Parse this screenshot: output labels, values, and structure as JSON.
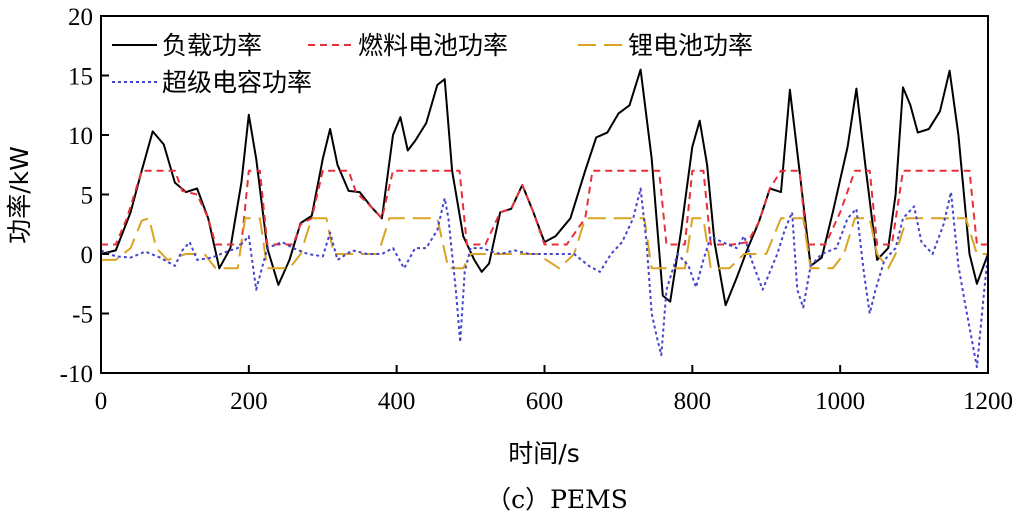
{
  "chart_data": {
    "type": "line",
    "xlabel": "时间/s",
    "ylabel": "功率/kW",
    "caption": "（c）PEMS",
    "xlim": [
      0,
      1200
    ],
    "ylim": [
      -10,
      20
    ],
    "xticks": [
      0,
      200,
      400,
      600,
      800,
      1000,
      1200
    ],
    "yticks": [
      -10,
      -5,
      0,
      5,
      10,
      15,
      20
    ],
    "grid": false,
    "legend_position": "top-left",
    "series": [
      {
        "name": "负载功率",
        "color": "#000000",
        "dash": "solid",
        "points": [
          [
            0,
            0
          ],
          [
            20,
            0.3
          ],
          [
            40,
            3.5
          ],
          [
            55,
            7
          ],
          [
            70,
            10.3
          ],
          [
            85,
            9.2
          ],
          [
            100,
            6
          ],
          [
            115,
            5.2
          ],
          [
            130,
            5.5
          ],
          [
            145,
            3
          ],
          [
            160,
            -1.2
          ],
          [
            175,
            0.5
          ],
          [
            190,
            6
          ],
          [
            200,
            11.7
          ],
          [
            210,
            8
          ],
          [
            225,
            0.5
          ],
          [
            240,
            -2.6
          ],
          [
            255,
            -0.5
          ],
          [
            270,
            2.6
          ],
          [
            285,
            3.2
          ],
          [
            300,
            8
          ],
          [
            310,
            10.5
          ],
          [
            320,
            7.5
          ],
          [
            335,
            5.3
          ],
          [
            350,
            5.2
          ],
          [
            365,
            4
          ],
          [
            380,
            3
          ],
          [
            395,
            10
          ],
          [
            405,
            11.5
          ],
          [
            415,
            8.7
          ],
          [
            425,
            9.5
          ],
          [
            440,
            11
          ],
          [
            455,
            14.2
          ],
          [
            465,
            14.7
          ],
          [
            475,
            7
          ],
          [
            490,
            1.5
          ],
          [
            505,
            -0.5
          ],
          [
            515,
            -1.5
          ],
          [
            525,
            -0.8
          ],
          [
            540,
            3.5
          ],
          [
            555,
            3.8
          ],
          [
            570,
            5.8
          ],
          [
            585,
            3.5
          ],
          [
            600,
            1
          ],
          [
            615,
            1.5
          ],
          [
            635,
            3
          ],
          [
            655,
            7
          ],
          [
            670,
            9.8
          ],
          [
            685,
            10.2
          ],
          [
            700,
            11.8
          ],
          [
            715,
            12.5
          ],
          [
            730,
            15.5
          ],
          [
            745,
            8
          ],
          [
            760,
            -3.5
          ],
          [
            770,
            -4
          ],
          [
            785,
            2
          ],
          [
            800,
            9
          ],
          [
            810,
            11.2
          ],
          [
            820,
            7.5
          ],
          [
            830,
            1
          ],
          [
            845,
            -4.3
          ],
          [
            860,
            -2
          ],
          [
            875,
            0.5
          ],
          [
            890,
            2.7
          ],
          [
            905,
            5.5
          ],
          [
            920,
            5.2
          ],
          [
            932,
            13.8
          ],
          [
            945,
            7
          ],
          [
            960,
            -1
          ],
          [
            975,
            -0.3
          ],
          [
            990,
            3.5
          ],
          [
            1010,
            9
          ],
          [
            1022,
            13.9
          ],
          [
            1035,
            7
          ],
          [
            1050,
            -0.5
          ],
          [
            1065,
            0.5
          ],
          [
            1075,
            5
          ],
          [
            1085,
            14
          ],
          [
            1095,
            12.5
          ],
          [
            1105,
            10.2
          ],
          [
            1120,
            10.5
          ],
          [
            1135,
            12
          ],
          [
            1148,
            15.4
          ],
          [
            1160,
            10
          ],
          [
            1175,
            0
          ],
          [
            1185,
            -2.5
          ],
          [
            1200,
            0
          ]
        ]
      },
      {
        "name": "燃料电池功率",
        "color": "#e8303a",
        "dash": "7 5",
        "points": [
          [
            0,
            0.8
          ],
          [
            20,
            0.8
          ],
          [
            35,
            3
          ],
          [
            55,
            7
          ],
          [
            100,
            7
          ],
          [
            110,
            5.3
          ],
          [
            130,
            5
          ],
          [
            145,
            3
          ],
          [
            155,
            0.8
          ],
          [
            190,
            0.8
          ],
          [
            200,
            7
          ],
          [
            215,
            7
          ],
          [
            225,
            0.8
          ],
          [
            260,
            0.8
          ],
          [
            270,
            2.5
          ],
          [
            285,
            3
          ],
          [
            300,
            7
          ],
          [
            335,
            7
          ],
          [
            345,
            5.2
          ],
          [
            365,
            4
          ],
          [
            380,
            3
          ],
          [
            395,
            7
          ],
          [
            485,
            7
          ],
          [
            495,
            0.8
          ],
          [
            520,
            0.8
          ],
          [
            540,
            3.5
          ],
          [
            555,
            3.8
          ],
          [
            570,
            5.8
          ],
          [
            585,
            3.5
          ],
          [
            600,
            0.8
          ],
          [
            630,
            0.8
          ],
          [
            655,
            3
          ],
          [
            665,
            7
          ],
          [
            755,
            7
          ],
          [
            765,
            0.8
          ],
          [
            790,
            0.8
          ],
          [
            800,
            7
          ],
          [
            815,
            7
          ],
          [
            825,
            0.8
          ],
          [
            855,
            0.8
          ],
          [
            875,
            1
          ],
          [
            890,
            2.7
          ],
          [
            905,
            5.5
          ],
          [
            920,
            7
          ],
          [
            945,
            7
          ],
          [
            955,
            0.8
          ],
          [
            980,
            0.8
          ],
          [
            1000,
            3.5
          ],
          [
            1020,
            7
          ],
          [
            1040,
            7
          ],
          [
            1050,
            0.8
          ],
          [
            1070,
            0.8
          ],
          [
            1085,
            7
          ],
          [
            1175,
            7
          ],
          [
            1185,
            0.8
          ],
          [
            1200,
            0.8
          ]
        ]
      },
      {
        "name": "锂电池功率",
        "color": "#d9a323",
        "dash": "18 8",
        "points": [
          [
            0,
            -0.5
          ],
          [
            20,
            -0.5
          ],
          [
            40,
            0.5
          ],
          [
            55,
            2.8
          ],
          [
            65,
            3
          ],
          [
            75,
            0.5
          ],
          [
            90,
            -0.5
          ],
          [
            115,
            0
          ],
          [
            140,
            0
          ],
          [
            155,
            -1.2
          ],
          [
            185,
            -1.2
          ],
          [
            195,
            3
          ],
          [
            215,
            3
          ],
          [
            225,
            -1.2
          ],
          [
            255,
            -1.2
          ],
          [
            270,
            0
          ],
          [
            285,
            3
          ],
          [
            305,
            3
          ],
          [
            315,
            0
          ],
          [
            340,
            0
          ],
          [
            360,
            0
          ],
          [
            375,
            0
          ],
          [
            390,
            3
          ],
          [
            455,
            3
          ],
          [
            470,
            -1.2
          ],
          [
            490,
            -1.2
          ],
          [
            500,
            0
          ],
          [
            540,
            0
          ],
          [
            560,
            0
          ],
          [
            590,
            0
          ],
          [
            620,
            -1.2
          ],
          [
            640,
            0
          ],
          [
            655,
            3
          ],
          [
            735,
            3
          ],
          [
            745,
            -1.2
          ],
          [
            790,
            -1.2
          ],
          [
            800,
            3
          ],
          [
            815,
            3
          ],
          [
            825,
            -1.2
          ],
          [
            850,
            -1.2
          ],
          [
            870,
            0
          ],
          [
            900,
            0
          ],
          [
            920,
            3
          ],
          [
            950,
            3
          ],
          [
            960,
            -1.2
          ],
          [
            990,
            -1.2
          ],
          [
            1005,
            0
          ],
          [
            1020,
            3
          ],
          [
            1040,
            3
          ],
          [
            1050,
            0
          ],
          [
            1065,
            -1.2
          ],
          [
            1075,
            0
          ],
          [
            1090,
            3
          ],
          [
            1170,
            3
          ],
          [
            1185,
            0
          ],
          [
            1200,
            0
          ]
        ]
      },
      {
        "name": "超级电容功率",
        "color": "#4444cc",
        "dash": "3 3",
        "points": [
          [
            0,
            0.3
          ],
          [
            20,
            -0.2
          ],
          [
            40,
            -0.3
          ],
          [
            60,
            0.2
          ],
          [
            80,
            -0.3
          ],
          [
            100,
            -1
          ],
          [
            110,
            0.3
          ],
          [
            120,
            1
          ],
          [
            130,
            -0.5
          ],
          [
            150,
            -0.3
          ],
          [
            170,
            0.2
          ],
          [
            185,
            0.5
          ],
          [
            200,
            1.5
          ],
          [
            210,
            -3
          ],
          [
            225,
            0.5
          ],
          [
            245,
            1
          ],
          [
            260,
            0.5
          ],
          [
            280,
            0
          ],
          [
            300,
            -0.2
          ],
          [
            310,
            1.8
          ],
          [
            320,
            -0.5
          ],
          [
            340,
            0.3
          ],
          [
            360,
            0
          ],
          [
            380,
            0
          ],
          [
            395,
            0.5
          ],
          [
            410,
            -1.2
          ],
          [
            425,
            0.5
          ],
          [
            440,
            0.5
          ],
          [
            455,
            2
          ],
          [
            465,
            4.7
          ],
          [
            470,
            3
          ],
          [
            480,
            -3
          ],
          [
            486,
            -7.4
          ],
          [
            492,
            -1.5
          ],
          [
            500,
            0.5
          ],
          [
            515,
            0.5
          ],
          [
            540,
            0
          ],
          [
            560,
            0.3
          ],
          [
            580,
            0
          ],
          [
            600,
            0
          ],
          [
            620,
            0
          ],
          [
            640,
            0
          ],
          [
            660,
            -1
          ],
          [
            675,
            -1.5
          ],
          [
            690,
            0
          ],
          [
            705,
            1
          ],
          [
            720,
            3
          ],
          [
            730,
            5.5
          ],
          [
            738,
            1
          ],
          [
            745,
            -5
          ],
          [
            752,
            -7
          ],
          [
            758,
            -8.5
          ],
          [
            765,
            -3
          ],
          [
            780,
            0
          ],
          [
            795,
            -1
          ],
          [
            805,
            -2.8
          ],
          [
            815,
            -0.5
          ],
          [
            825,
            1.5
          ],
          [
            840,
            1
          ],
          [
            860,
            0.5
          ],
          [
            870,
            1.5
          ],
          [
            880,
            -0.5
          ],
          [
            895,
            -3
          ],
          [
            905,
            -1.5
          ],
          [
            915,
            0
          ],
          [
            925,
            2
          ],
          [
            935,
            3.5
          ],
          [
            942,
            -3
          ],
          [
            950,
            -4.5
          ],
          [
            960,
            -1
          ],
          [
            975,
            0
          ],
          [
            995,
            0.5
          ],
          [
            1010,
            3
          ],
          [
            1022,
            3.8
          ],
          [
            1032,
            -1.5
          ],
          [
            1040,
            -5
          ],
          [
            1048,
            -3
          ],
          [
            1060,
            -0.5
          ],
          [
            1075,
            0.5
          ],
          [
            1085,
            3
          ],
          [
            1100,
            4
          ],
          [
            1110,
            1
          ],
          [
            1125,
            0
          ],
          [
            1140,
            2.5
          ],
          [
            1150,
            5.2
          ],
          [
            1160,
            -1
          ],
          [
            1170,
            -4.5
          ],
          [
            1185,
            -9.5
          ],
          [
            1195,
            -3
          ],
          [
            1200,
            0
          ]
        ]
      }
    ]
  }
}
